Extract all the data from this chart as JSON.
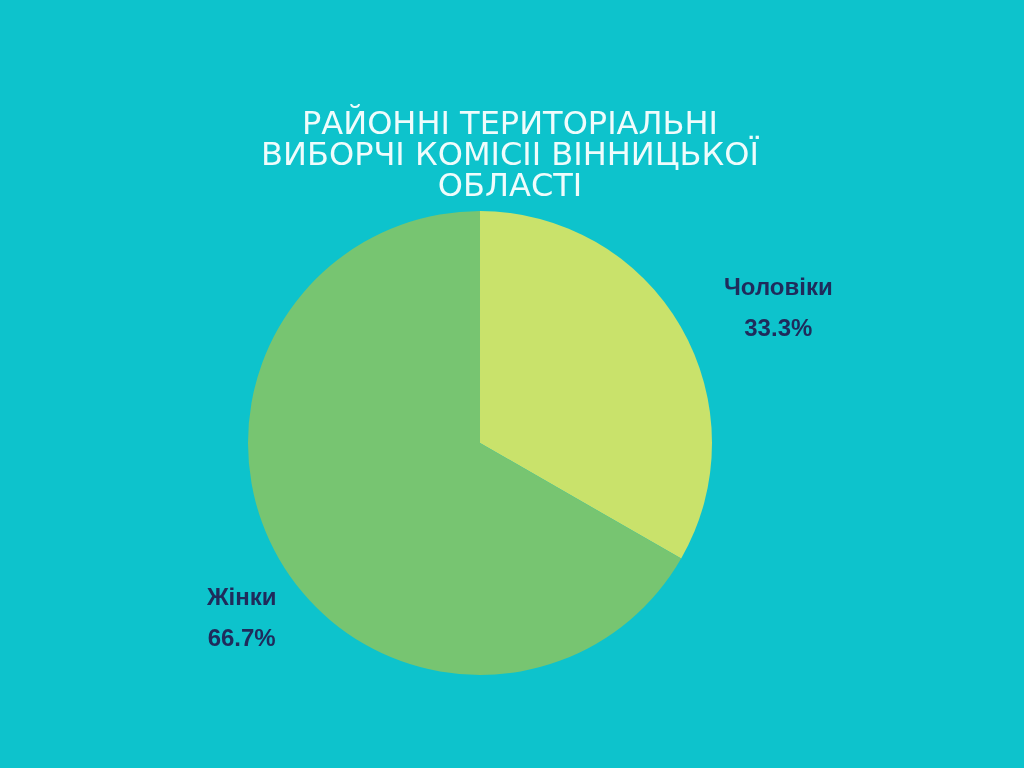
{
  "chart_data": {
    "type": "pie",
    "title": "РАЙОННІ ТЕРИТОРІАЛЬНІ ВИБОРЧІ КОМІСІІ ВІННИЦЬКОЇ ОБЛАСТІ",
    "categories": [
      "Чоловіки",
      "Жінки"
    ],
    "values": [
      33.3,
      66.7
    ],
    "colors": [
      "#c9e26b",
      "#77c571"
    ],
    "value_labels": [
      "33.3%",
      "66.7%"
    ]
  }
}
